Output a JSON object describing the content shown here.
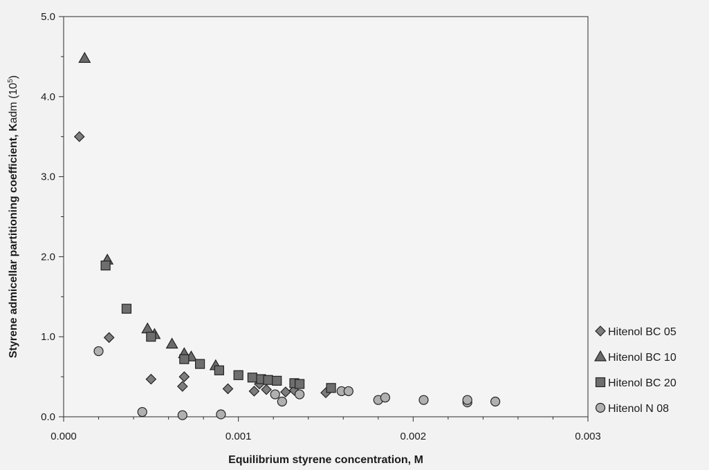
{
  "chart_data": {
    "type": "scatter",
    "title": "",
    "xlabel": "Equilibrium styrene concentration, M",
    "ylabel_main": "Styrene admicellar partitioning coefficient, K",
    "ylabel_sub": "adm",
    "ylabel_paren_open": " (10",
    "ylabel_sup": "5",
    "ylabel_paren_close": ")",
    "xlim": [
      0.0,
      0.003
    ],
    "ylim": [
      0.0,
      5.0
    ],
    "x_ticks": [
      "0.000",
      "0.001",
      "0.002",
      "0.003"
    ],
    "y_ticks": [
      "0.0",
      "1.0",
      "2.0",
      "3.0",
      "4.0",
      "5.0"
    ],
    "grid": false,
    "legend_position": "right",
    "series": [
      {
        "name": "Hitenol BC 05",
        "marker": "diamond",
        "color": "#7d7d7d",
        "points": [
          [
            9e-05,
            3.5
          ],
          [
            0.00026,
            0.99
          ],
          [
            0.0005,
            0.47
          ],
          [
            0.00068,
            0.38
          ],
          [
            0.00069,
            0.5
          ],
          [
            0.00094,
            0.35
          ],
          [
            0.00109,
            0.32
          ],
          [
            0.00112,
            0.41
          ],
          [
            0.00116,
            0.34
          ],
          [
            0.00127,
            0.31
          ],
          [
            0.00132,
            0.33
          ],
          [
            0.0015,
            0.3
          ]
        ]
      },
      {
        "name": "Hitenol BC 10",
        "marker": "triangle",
        "color": "#6a6a6a",
        "points": [
          [
            0.00012,
            4.48
          ],
          [
            0.00025,
            1.96
          ],
          [
            0.00048,
            1.1
          ],
          [
            0.00052,
            1.03
          ],
          [
            0.00062,
            0.91
          ],
          [
            0.00069,
            0.79
          ],
          [
            0.00073,
            0.75
          ],
          [
            0.00087,
            0.64
          ]
        ]
      },
      {
        "name": "Hitenol BC 20",
        "marker": "square",
        "color": "#6e6e6e",
        "points": [
          [
            0.00024,
            1.89
          ],
          [
            0.00036,
            1.35
          ],
          [
            0.0005,
            1.0
          ],
          [
            0.00069,
            0.72
          ],
          [
            0.00078,
            0.66
          ],
          [
            0.00089,
            0.58
          ],
          [
            0.001,
            0.52
          ],
          [
            0.00108,
            0.49
          ],
          [
            0.00113,
            0.47
          ],
          [
            0.00117,
            0.46
          ],
          [
            0.00122,
            0.45
          ],
          [
            0.00132,
            0.42
          ],
          [
            0.00135,
            0.41
          ],
          [
            0.00153,
            0.36
          ]
        ]
      },
      {
        "name": "Hitenol N 08",
        "marker": "circle",
        "color": "#b0b0b0",
        "points": [
          [
            0.0002,
            0.82
          ],
          [
            0.00045,
            0.06
          ],
          [
            0.00068,
            0.02
          ],
          [
            0.0009,
            0.03
          ],
          [
            0.00121,
            0.28
          ],
          [
            0.00125,
            0.19
          ],
          [
            0.00135,
            0.28
          ],
          [
            0.00159,
            0.32
          ],
          [
            0.00163,
            0.32
          ],
          [
            0.0018,
            0.21
          ],
          [
            0.00184,
            0.24
          ],
          [
            0.00206,
            0.21
          ],
          [
            0.00231,
            0.18
          ],
          [
            0.00231,
            0.21
          ],
          [
            0.00247,
            0.19
          ]
        ]
      }
    ]
  }
}
